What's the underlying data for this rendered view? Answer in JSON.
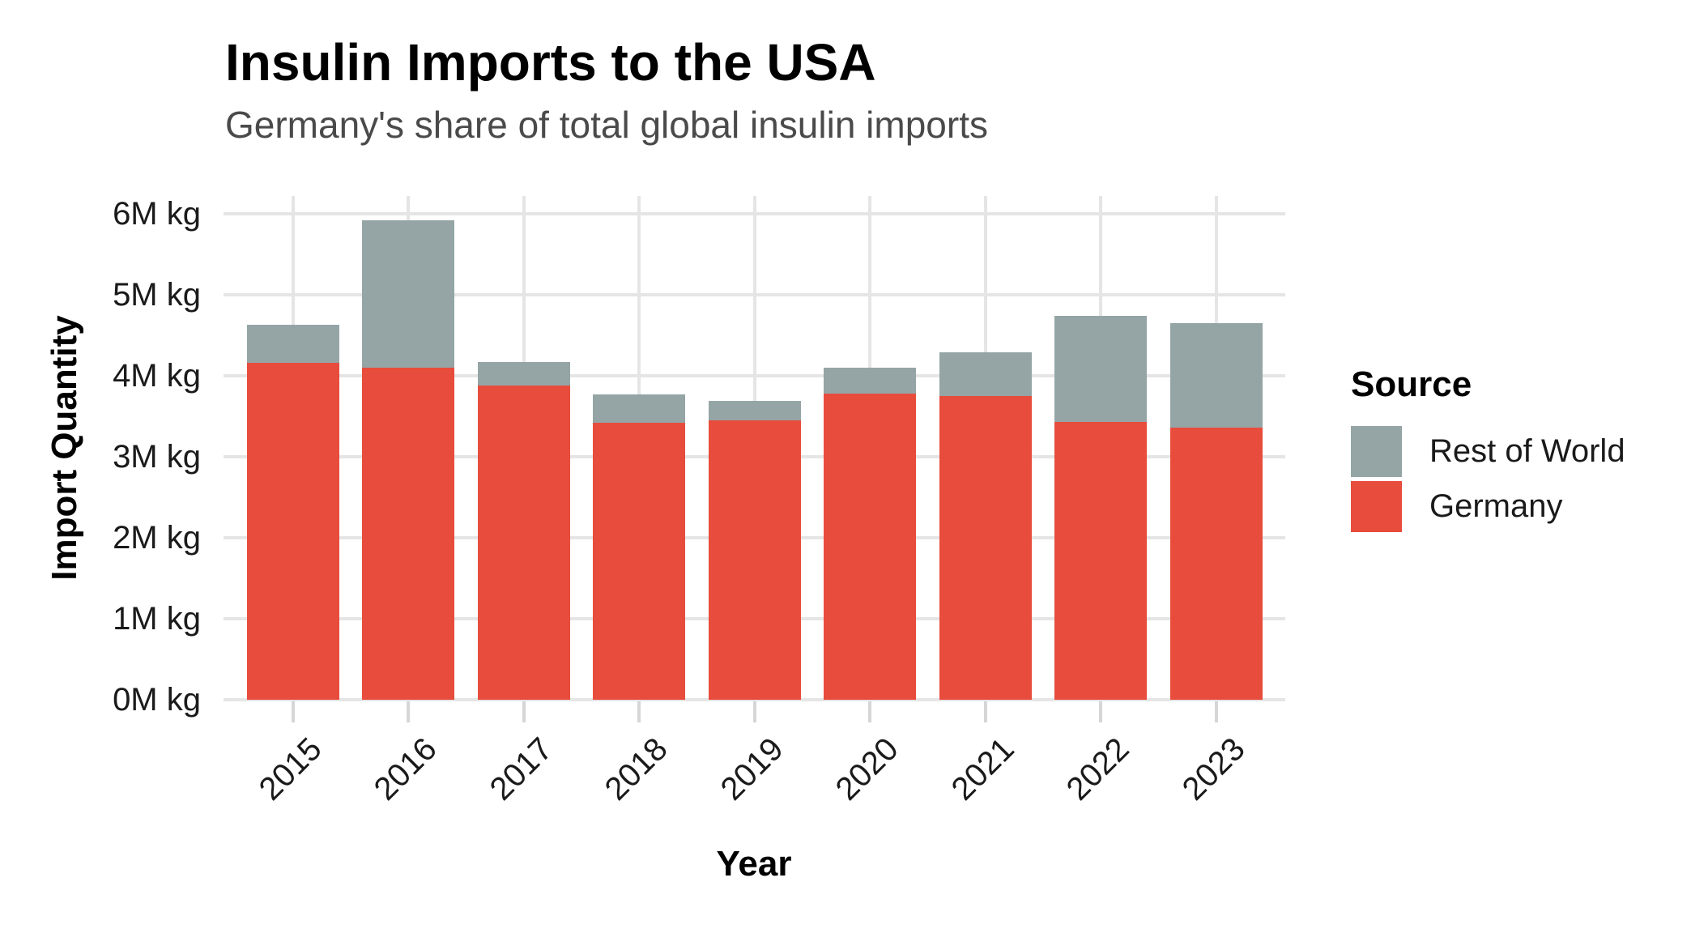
{
  "header": {
    "title": "Insulin Imports to the USA",
    "subtitle": "Germany's share of total global insulin imports"
  },
  "chart_data": {
    "type": "bar",
    "stacked": true,
    "orientation": "vertical",
    "title": "Insulin Imports to the USA",
    "subtitle": "Germany's share of total global insulin imports",
    "xlabel": "Year",
    "ylabel": "Import Quantity",
    "unit": "M kg",
    "categories": [
      "2015",
      "2016",
      "2017",
      "2018",
      "2019",
      "2020",
      "2021",
      "2022",
      "2023"
    ],
    "series": [
      {
        "name": "Rest of World",
        "color": "#95A5A6",
        "values": [
          0.47,
          1.82,
          0.29,
          0.35,
          0.24,
          0.32,
          0.54,
          1.31,
          1.29
        ]
      },
      {
        "name": "Germany",
        "color": "#E74C3C",
        "values": [
          4.16,
          4.1,
          3.88,
          3.42,
          3.45,
          3.78,
          3.75,
          3.43,
          3.36
        ]
      }
    ],
    "stack_order_bottom_to_top": [
      "Germany",
      "Rest of World"
    ],
    "ylim": [
      0,
      6.21
    ],
    "yticks": {
      "values": [
        0,
        1,
        2,
        3,
        4,
        5,
        6
      ],
      "labels": [
        "0M kg",
        "1M kg",
        "2M kg",
        "3M kg",
        "4M kg",
        "5M kg",
        "6M kg"
      ]
    },
    "xticks_rotation_deg": 45,
    "grid": {
      "horizontal": "major-1M",
      "vertical": "category-centers",
      "color": "#E5E5E5"
    },
    "legend": {
      "title": "Source",
      "position": "right",
      "entries": [
        "Rest of World",
        "Germany"
      ]
    }
  },
  "colors": {
    "germany_red": "#E74C3C",
    "rest_of_world_gray": "#95A5A6",
    "gridline": "#E5E5E5",
    "tick_mark": "#D6D6D6",
    "axis_text": "#1a1a1a",
    "subtitle_text": "#4a4a4a",
    "title_text": "#000000",
    "background": "#FFFFFF"
  }
}
